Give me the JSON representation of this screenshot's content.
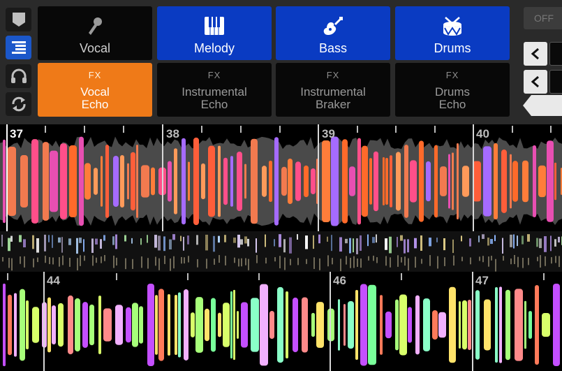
{
  "stems": [
    {
      "label": "Vocal",
      "icon": "microphone-icon",
      "active": false
    },
    {
      "label": "Melody",
      "icon": "piano-keys-icon",
      "active": true
    },
    {
      "label": "Bass",
      "icon": "guitar-icon",
      "active": true
    },
    {
      "label": "Drums",
      "icon": "drum-icon",
      "active": true
    }
  ],
  "fx": [
    {
      "tag": "FX",
      "line1": "Vocal",
      "line2": "Echo",
      "active": true
    },
    {
      "tag": "FX",
      "line1": "Instrumental",
      "line2": "Echo",
      "active": false
    },
    {
      "tag": "FX",
      "line1": "Instrumental",
      "line2": "Braker",
      "active": false
    },
    {
      "tag": "FX",
      "line1": "Drums",
      "line2": "Echo",
      "active": false
    }
  ],
  "side_buttons": [
    "speech-bubble-icon",
    "list-icon",
    "headphones-icon",
    "loop-icon"
  ],
  "off_label": "OFF",
  "deck_top": {
    "beats": [
      "37",
      "38",
      "39",
      "40"
    ]
  },
  "deck_bottom": {
    "beats": [
      "44",
      "46",
      "47"
    ]
  },
  "colors": {
    "blue": "#0a3bc2",
    "orange": "#ef7a18"
  }
}
